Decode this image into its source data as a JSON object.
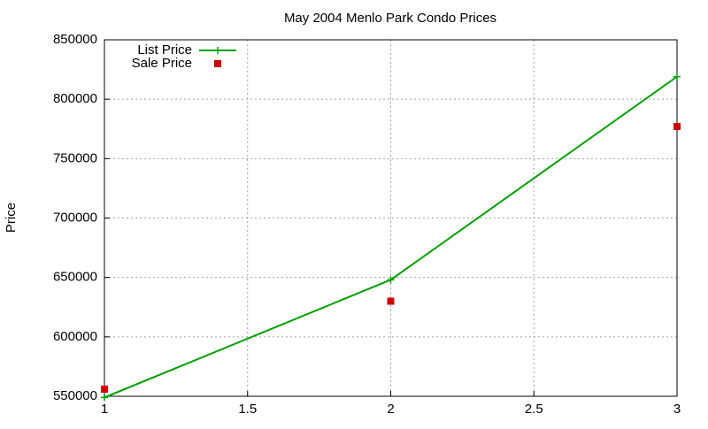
{
  "chart_data": {
    "type": "line",
    "title": "May 2004 Menlo Park Condo Prices",
    "y_label": "Price",
    "x": [
      1,
      2,
      3
    ],
    "series": [
      {
        "name": "List Price",
        "color": "#00a000",
        "style": "linespoints",
        "values": [
          549000,
          648000,
          819000
        ]
      },
      {
        "name": "Sale Price",
        "color": "#cc0000",
        "style": "points",
        "values": [
          556000,
          630000,
          777000
        ]
      }
    ],
    "xlim": [
      1,
      3
    ],
    "xticks": [
      1,
      1.5,
      2,
      2.5,
      3
    ],
    "ylim": [
      550000,
      850000
    ],
    "yticks": [
      550000,
      600000,
      650000,
      700000,
      750000,
      800000,
      850000
    ],
    "grid": true,
    "legend": "top-left"
  }
}
